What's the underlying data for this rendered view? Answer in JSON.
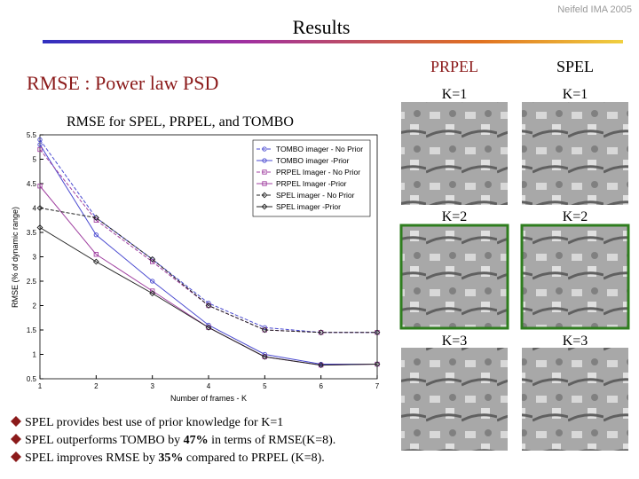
{
  "header": {
    "title": "Results",
    "credit": "Neifeld IMA 2005"
  },
  "subtitle": "RMSE : Power law PSD",
  "columns": [
    {
      "name": "PRPEL",
      "labels": [
        "K=1",
        "K=2",
        "K=3"
      ]
    },
    {
      "name": "SPEL",
      "labels": [
        "K=1",
        "K=2",
        "K=3"
      ]
    }
  ],
  "bullets": [
    {
      "before": "SPEL provides best use of prior knowledge for K=1"
    },
    {
      "before": "SPEL outperforms TOMBO by ",
      "bold": "47%",
      "after": " in terms of RMSE(K=8)."
    },
    {
      "before": "SPEL improves RMSE by ",
      "bold": "35%",
      "after": " compared to PRPEL (K=8)."
    }
  ],
  "chart_data": {
    "type": "line",
    "title": "RMSE for SPEL, PRPEL, and TOMBO",
    "x_label": "Number of frames - K",
    "y_label": "RMSE (% of dynamic range)",
    "x": [
      1,
      2,
      3,
      4,
      5,
      6,
      7
    ],
    "xlim": [
      1,
      7
    ],
    "xticks": [
      1,
      2,
      3,
      4,
      5,
      6,
      7
    ],
    "ylim": [
      0.5,
      5.5
    ],
    "yticks": [
      0.5,
      1,
      1.5,
      2,
      2.5,
      3,
      3.5,
      4,
      4.5,
      5,
      5.5
    ],
    "legend": "upper right",
    "series": [
      {
        "name": "TOMBO imager - No Prior",
        "color": "#4a4ad0",
        "dashed": true,
        "marker": "circle",
        "values": [
          5.4,
          3.8,
          2.95,
          2.05,
          1.55,
          1.45,
          1.45
        ]
      },
      {
        "name": "TOMBO imager -Prior",
        "color": "#4a4ad0",
        "dashed": false,
        "marker": "circle",
        "values": [
          5.3,
          3.45,
          2.5,
          1.6,
          1.0,
          0.8,
          0.8
        ]
      },
      {
        "name": "PRPEL Imager - No Prior",
        "color": "#a040a0",
        "dashed": true,
        "marker": "square",
        "values": [
          5.2,
          3.75,
          2.9,
          2.0,
          1.5,
          1.45,
          1.45
        ]
      },
      {
        "name": "PRPEL Imager -Prior",
        "color": "#a040a0",
        "dashed": false,
        "marker": "square",
        "values": [
          4.45,
          3.05,
          2.3,
          1.55,
          0.95,
          0.78,
          0.8
        ]
      },
      {
        "name": "SPEL imager - No Prior",
        "color": "#222222",
        "dashed": true,
        "marker": "diamond",
        "values": [
          4.0,
          3.8,
          2.95,
          2.0,
          1.5,
          1.45,
          1.45
        ]
      },
      {
        "name": "SPEL imager -Prior",
        "color": "#222222",
        "dashed": false,
        "marker": "diamond",
        "values": [
          3.6,
          2.9,
          2.25,
          1.55,
          0.95,
          0.78,
          0.8
        ]
      }
    ]
  }
}
